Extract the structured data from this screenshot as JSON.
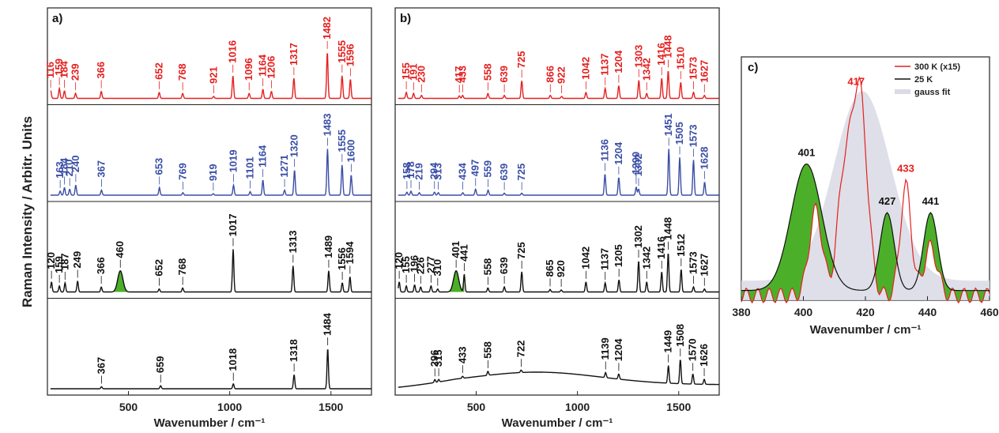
{
  "figure": {
    "ylabel": "Raman Intensity / Arbitr. Units"
  },
  "colors": {
    "red": "#e5201f",
    "blue": "#3a4ea5",
    "black": "#111111",
    "green": "#4caf2a",
    "gauss": "#dadbe6"
  },
  "chart_data": [
    {
      "panel": "a)",
      "type": "line",
      "xlabel": "Wavenumber / cm⁻¹",
      "xlim": [
        100,
        1700
      ],
      "xticks": [
        "500",
        "1000",
        "1500"
      ],
      "xtick_values": [
        500,
        1000,
        1500
      ],
      "series": [
        {
          "color": "red",
          "peaks": [
            {
              "x": 116,
              "h": 0.15,
              "label": "116"
            },
            {
              "x": 159,
              "h": 0.2,
              "label": "159"
            },
            {
              "x": 184,
              "h": 0.15,
              "label": "184"
            },
            {
              "x": 239,
              "h": 0.1,
              "label": "239"
            },
            {
              "x": 366,
              "h": 0.14,
              "label": "366"
            },
            {
              "x": 652,
              "h": 0.12,
              "label": "652"
            },
            {
              "x": 768,
              "h": 0.1,
              "label": "768"
            },
            {
              "x": 921,
              "h": 0.04,
              "label": "921"
            },
            {
              "x": 1016,
              "h": 0.45,
              "label": "1016"
            },
            {
              "x": 1096,
              "h": 0.1,
              "label": "1096"
            },
            {
              "x": 1164,
              "h": 0.18,
              "label": "1164"
            },
            {
              "x": 1206,
              "h": 0.14,
              "label": "1206"
            },
            {
              "x": 1317,
              "h": 0.4,
              "label": "1317"
            },
            {
              "x": 1482,
              "h": 0.92,
              "label": "1482"
            },
            {
              "x": 1555,
              "h": 0.45,
              "label": "1555"
            },
            {
              "x": 1596,
              "h": 0.38,
              "label": "1596"
            }
          ]
        },
        {
          "color": "blue",
          "peaks": [
            {
              "x": 163,
              "h": 0.08,
              "label": "163"
            },
            {
              "x": 184,
              "h": 0.15,
              "label": "184"
            },
            {
              "x": 210,
              "h": 0.12,
              "label": "210"
            },
            {
              "x": 240,
              "h": 0.2,
              "label": "240"
            },
            {
              "x": 367,
              "h": 0.1,
              "label": "367"
            },
            {
              "x": 653,
              "h": 0.15,
              "label": "653"
            },
            {
              "x": 769,
              "h": 0.05,
              "label": "769"
            },
            {
              "x": 919,
              "h": 0.03,
              "label": "919"
            },
            {
              "x": 1019,
              "h": 0.2,
              "label": "1019"
            },
            {
              "x": 1101,
              "h": 0.07,
              "label": "1101"
            },
            {
              "x": 1164,
              "h": 0.3,
              "label": "1164"
            },
            {
              "x": 1271,
              "h": 0.1,
              "label": "1271"
            },
            {
              "x": 1320,
              "h": 0.5,
              "label": "1320"
            },
            {
              "x": 1483,
              "h": 0.92,
              "label": "1483"
            },
            {
              "x": 1555,
              "h": 0.6,
              "label": "1555"
            },
            {
              "x": 1600,
              "h": 0.4,
              "label": "1600"
            }
          ]
        },
        {
          "color": "black",
          "peaks": [
            {
              "x": 120,
              "h": 0.2,
              "label": "120"
            },
            {
              "x": 159,
              "h": 0.12,
              "label": "159"
            },
            {
              "x": 187,
              "h": 0.18,
              "label": "187"
            },
            {
              "x": 249,
              "h": 0.22,
              "label": "249"
            },
            {
              "x": 366,
              "h": 0.1,
              "label": "366"
            },
            {
              "x": 460,
              "h": 0.42,
              "label": "460",
              "fill": true
            },
            {
              "x": 652,
              "h": 0.06,
              "label": "652"
            },
            {
              "x": 768,
              "h": 0.08,
              "label": "768"
            },
            {
              "x": 1017,
              "h": 0.85,
              "label": "1017"
            },
            {
              "x": 1313,
              "h": 0.52,
              "label": "1313"
            },
            {
              "x": 1489,
              "h": 0.42,
              "label": "1489"
            },
            {
              "x": 1556,
              "h": 0.18,
              "label": "1556"
            },
            {
              "x": 1594,
              "h": 0.3,
              "label": "1594"
            }
          ]
        },
        {
          "color": "black",
          "peaks": [
            {
              "x": 367,
              "h": 0.04,
              "label": "367"
            },
            {
              "x": 659,
              "h": 0.06,
              "label": "659"
            },
            {
              "x": 1018,
              "h": 0.1,
              "label": "1018"
            },
            {
              "x": 1318,
              "h": 0.28,
              "label": "1318"
            },
            {
              "x": 1484,
              "h": 0.8,
              "label": "1484"
            }
          ]
        }
      ]
    },
    {
      "panel": "b)",
      "type": "line",
      "xlabel": "Wavenumber / cm⁻¹",
      "xlim": [
        100,
        1700
      ],
      "xticks": [
        "500",
        "1000",
        "1500"
      ],
      "xtick_values": [
        500,
        1000,
        1500
      ],
      "series": [
        {
          "color": "red",
          "peaks": [
            {
              "x": 155,
              "h": 0.12,
              "label": "155"
            },
            {
              "x": 191,
              "h": 0.1,
              "label": "191"
            },
            {
              "x": 230,
              "h": 0.06,
              "label": "230"
            },
            {
              "x": 417,
              "h": 0.05,
              "label": "417"
            },
            {
              "x": 433,
              "h": 0.06,
              "label": "433"
            },
            {
              "x": 558,
              "h": 0.1,
              "label": "558"
            },
            {
              "x": 639,
              "h": 0.06,
              "label": "639"
            },
            {
              "x": 725,
              "h": 0.35,
              "label": "725"
            },
            {
              "x": 866,
              "h": 0.06,
              "label": "866"
            },
            {
              "x": 922,
              "h": 0.04,
              "label": "922"
            },
            {
              "x": 1042,
              "h": 0.12,
              "label": "1042"
            },
            {
              "x": 1137,
              "h": 0.2,
              "label": "1137"
            },
            {
              "x": 1204,
              "h": 0.25,
              "label": "1204"
            },
            {
              "x": 1303,
              "h": 0.36,
              "label": "1303"
            },
            {
              "x": 1342,
              "h": 0.1,
              "label": "1342"
            },
            {
              "x": 1416,
              "h": 0.4,
              "label": "1416"
            },
            {
              "x": 1448,
              "h": 0.55,
              "label": "1448"
            },
            {
              "x": 1510,
              "h": 0.32,
              "label": "1510"
            },
            {
              "x": 1573,
              "h": 0.12,
              "label": "1573"
            },
            {
              "x": 1627,
              "h": 0.06,
              "label": "1627"
            }
          ]
        },
        {
          "color": "blue",
          "peaks": [
            {
              "x": 158,
              "h": 0.06,
              "label": "158"
            },
            {
              "x": 178,
              "h": 0.08,
              "label": "178"
            },
            {
              "x": 219,
              "h": 0.05,
              "label": "219"
            },
            {
              "x": 294,
              "h": 0.06,
              "label": "294"
            },
            {
              "x": 313,
              "h": 0.05,
              "label": "313"
            },
            {
              "x": 434,
              "h": 0.05,
              "label": "434"
            },
            {
              "x": 497,
              "h": 0.12,
              "label": "497"
            },
            {
              "x": 559,
              "h": 0.1,
              "label": "559"
            },
            {
              "x": 639,
              "h": 0.04,
              "label": "639"
            },
            {
              "x": 725,
              "h": 0.04,
              "label": "725"
            },
            {
              "x": 1136,
              "h": 0.42,
              "label": "1136"
            },
            {
              "x": 1204,
              "h": 0.35,
              "label": "1204"
            },
            {
              "x": 1290,
              "h": 0.16,
              "label": "1290"
            },
            {
              "x": 1302,
              "h": 0.12,
              "label": "1302"
            },
            {
              "x": 1451,
              "h": 0.92,
              "label": "1451"
            },
            {
              "x": 1505,
              "h": 0.75,
              "label": "1505"
            },
            {
              "x": 1573,
              "h": 0.7,
              "label": "1573"
            },
            {
              "x": 1628,
              "h": 0.26,
              "label": "1628"
            }
          ]
        },
        {
          "color": "black",
          "peaks": [
            {
              "x": 120,
              "h": 0.2,
              "label": "120"
            },
            {
              "x": 155,
              "h": 0.12,
              "label": "155"
            },
            {
              "x": 196,
              "h": 0.14,
              "label": "196"
            },
            {
              "x": 226,
              "h": 0.1,
              "label": "226"
            },
            {
              "x": 277,
              "h": 0.12,
              "label": "277"
            },
            {
              "x": 310,
              "h": 0.06,
              "label": "310"
            },
            {
              "x": 401,
              "h": 0.42,
              "label": "401",
              "fill": true
            },
            {
              "x": 441,
              "h": 0.35,
              "label": "441"
            },
            {
              "x": 558,
              "h": 0.08,
              "label": "558"
            },
            {
              "x": 639,
              "h": 0.1,
              "label": "639"
            },
            {
              "x": 725,
              "h": 0.4,
              "label": "725"
            },
            {
              "x": 865,
              "h": 0.05,
              "label": "865"
            },
            {
              "x": 920,
              "h": 0.04,
              "label": "920"
            },
            {
              "x": 1042,
              "h": 0.2,
              "label": "1042"
            },
            {
              "x": 1137,
              "h": 0.18,
              "label": "1137"
            },
            {
              "x": 1205,
              "h": 0.24,
              "label": "1205"
            },
            {
              "x": 1302,
              "h": 0.62,
              "label": "1302"
            },
            {
              "x": 1342,
              "h": 0.2,
              "label": "1342"
            },
            {
              "x": 1416,
              "h": 0.4,
              "label": "1416"
            },
            {
              "x": 1448,
              "h": 0.78,
              "label": "1448"
            },
            {
              "x": 1512,
              "h": 0.45,
              "label": "1512"
            },
            {
              "x": 1573,
              "h": 0.1,
              "label": "1573"
            },
            {
              "x": 1627,
              "h": 0.06,
              "label": "1627"
            }
          ]
        },
        {
          "color": "black",
          "broad": true,
          "peaks": [
            {
              "x": 296,
              "h": 0.06,
              "label": "296"
            },
            {
              "x": 315,
              "h": 0.05,
              "label": "315"
            },
            {
              "x": 433,
              "h": 0.04,
              "label": "433"
            },
            {
              "x": 558,
              "h": 0.08,
              "label": "558"
            },
            {
              "x": 722,
              "h": 0.05,
              "label": "722"
            },
            {
              "x": 1139,
              "h": 0.1,
              "label": "1139"
            },
            {
              "x": 1204,
              "h": 0.1,
              "label": "1204"
            },
            {
              "x": 1449,
              "h": 0.35,
              "label": "1449"
            },
            {
              "x": 1508,
              "h": 0.48,
              "label": "1508"
            },
            {
              "x": 1570,
              "h": 0.2,
              "label": "1570"
            },
            {
              "x": 1626,
              "h": 0.1,
              "label": "1626"
            }
          ]
        }
      ]
    },
    {
      "panel": "c)",
      "type": "line",
      "xlabel": "Wavenumber / cm⁻¹",
      "xlim": [
        380,
        460
      ],
      "xticks": [
        "380",
        "400",
        "420",
        "440",
        "460"
      ],
      "xtick_values": [
        380,
        400,
        420,
        440,
        460
      ],
      "legend": [
        "300 K (x15)",
        "25 K",
        "gauss fit"
      ],
      "legend_placement": "top-right",
      "peak_labels": [
        {
          "x": 401,
          "label": "401",
          "color": "black"
        },
        {
          "x": 417,
          "label": "417",
          "color": "red"
        },
        {
          "x": 427,
          "label": "427",
          "color": "black"
        },
        {
          "x": 433,
          "label": "433",
          "color": "red"
        },
        {
          "x": 441,
          "label": "441",
          "color": "black"
        }
      ],
      "gauss_fit": {
        "center": 419,
        "width": 13,
        "height": 0.95
      },
      "series": [
        {
          "name": "25 K",
          "color": "black",
          "peaks": [
            {
              "x": 401,
              "h": 0.52,
              "w": 7
            },
            {
              "x": 427,
              "h": 0.32,
              "w": 3.2
            },
            {
              "x": 441,
              "h": 0.32,
              "w": 3.2
            }
          ]
        },
        {
          "name": "300 K (x15)",
          "color": "red",
          "peaks": [
            {
              "x": 404,
              "h": 0.35,
              "w": 3
            },
            {
              "x": 418,
              "h": 0.85,
              "w": 3.5
            },
            {
              "x": 413,
              "h": 0.45,
              "w": 3
            },
            {
              "x": 433,
              "h": 0.45,
              "w": 2.5
            },
            {
              "x": 441,
              "h": 0.2,
              "w": 3
            }
          ]
        }
      ]
    }
  ]
}
